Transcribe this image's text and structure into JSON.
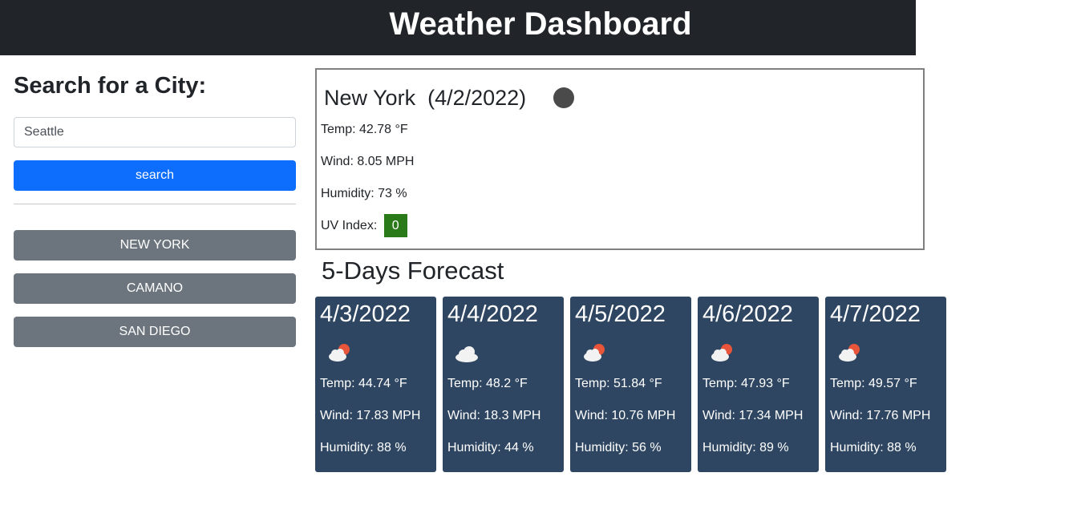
{
  "header": {
    "title": "Weather Dashboard"
  },
  "sidebar": {
    "heading": "Search for a City:",
    "search_value": "Seattle",
    "search_button": "search",
    "history": [
      "New York",
      "Camano",
      "San Diego"
    ]
  },
  "current": {
    "city": "New York",
    "date": "(4/2/2022)",
    "icon": "weather-icon-dark",
    "temp_label": "Temp: 42.78 °F",
    "wind_label": "Wind: 8.05 MPH",
    "humidity_label": "Humidity: 73 %",
    "uv_label": "UV Index:",
    "uv_value": "0",
    "uv_color": "#2b7a1a"
  },
  "forecast": {
    "heading": "5-Days Forecast",
    "days": [
      {
        "date": "4/3/2022",
        "icon": "cloud-sun-icon",
        "temp": "Temp: 44.74 °F",
        "wind": "Wind: 17.83 MPH",
        "humidity": "Humidity: 88 %"
      },
      {
        "date": "4/4/2022",
        "icon": "cloud-icon",
        "temp": "Temp: 48.2 °F",
        "wind": "Wind: 18.3 MPH",
        "humidity": "Humidity: 44 %"
      },
      {
        "date": "4/5/2022",
        "icon": "cloud-sun-icon",
        "temp": "Temp: 51.84 °F",
        "wind": "Wind: 10.76 MPH",
        "humidity": "Humidity: 56 %"
      },
      {
        "date": "4/6/2022",
        "icon": "cloud-sun-icon",
        "temp": "Temp: 47.93 °F",
        "wind": "Wind: 17.34 MPH",
        "humidity": "Humidity: 89 %"
      },
      {
        "date": "4/7/2022",
        "icon": "cloud-sun-icon",
        "temp": "Temp: 49.57 °F",
        "wind": "Wind: 17.76 MPH",
        "humidity": "Humidity: 88 %"
      }
    ]
  },
  "colors": {
    "header_bg": "#212529",
    "primary": "#0d6efd",
    "secondary": "#6c757d",
    "card_bg": "#2e4661"
  }
}
